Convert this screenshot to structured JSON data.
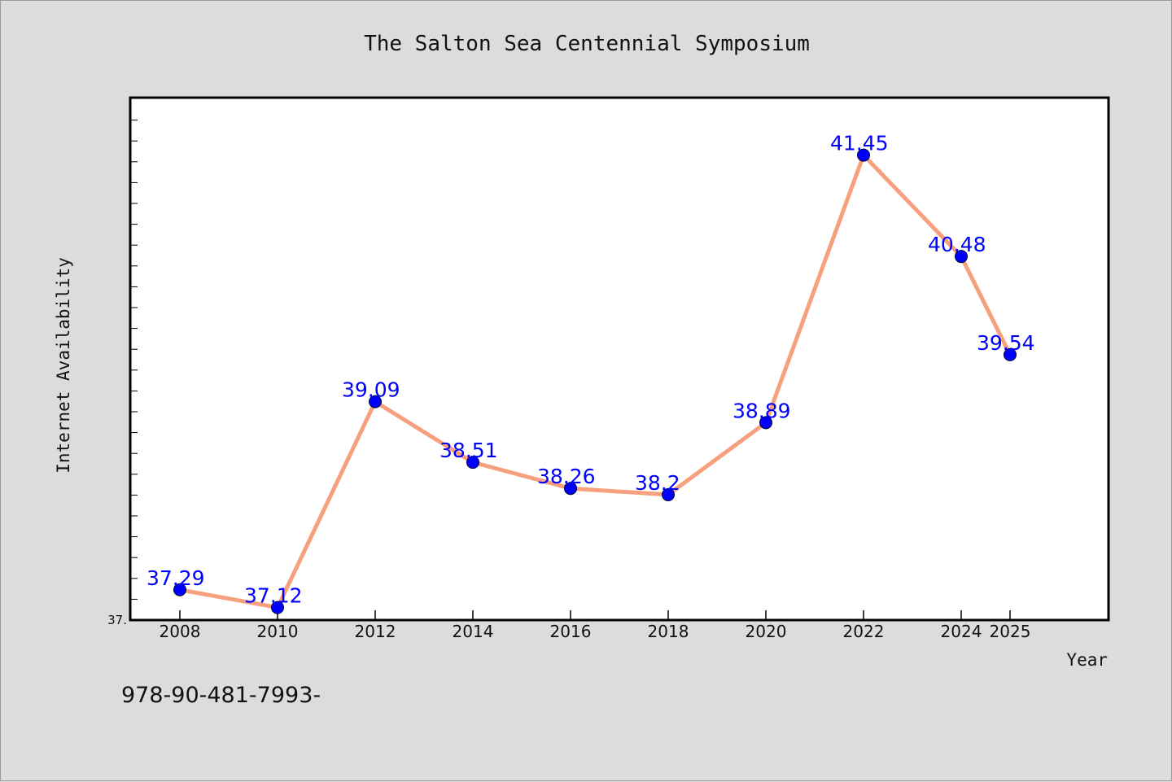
{
  "chart_data": {
    "type": "line",
    "title": "The Salton Sea Centennial Symposium",
    "xlabel": "Year",
    "ylabel": "Internet Availability",
    "x": [
      2008,
      2010,
      2012,
      2014,
      2016,
      2018,
      2020,
      2022,
      2024,
      2025
    ],
    "x_tick_labels": [
      "2008",
      "2010",
      "2012",
      "2014",
      "2016",
      "2018",
      "2020",
      "2022",
      "2024",
      "2025"
    ],
    "series": [
      {
        "values": [
          37.29,
          37.12,
          39.09,
          38.51,
          38.26,
          38.2,
          38.89,
          41.45,
          40.48,
          39.54
        ],
        "data_labels": [
          "37.29",
          "37.12",
          "39.09",
          "38.51",
          "38.26",
          "38.2",
          "38.89",
          "41.45",
          "40.48",
          "39.54"
        ],
        "line_color": "#f7a07e",
        "marker_color": "#0000ff"
      }
    ],
    "ylim": [
      37.0,
      42.0
    ],
    "y_tick_labels": [
      "37."
    ],
    "grid": false,
    "legend": "none"
  },
  "footer_text": "978-90-481-7993-"
}
